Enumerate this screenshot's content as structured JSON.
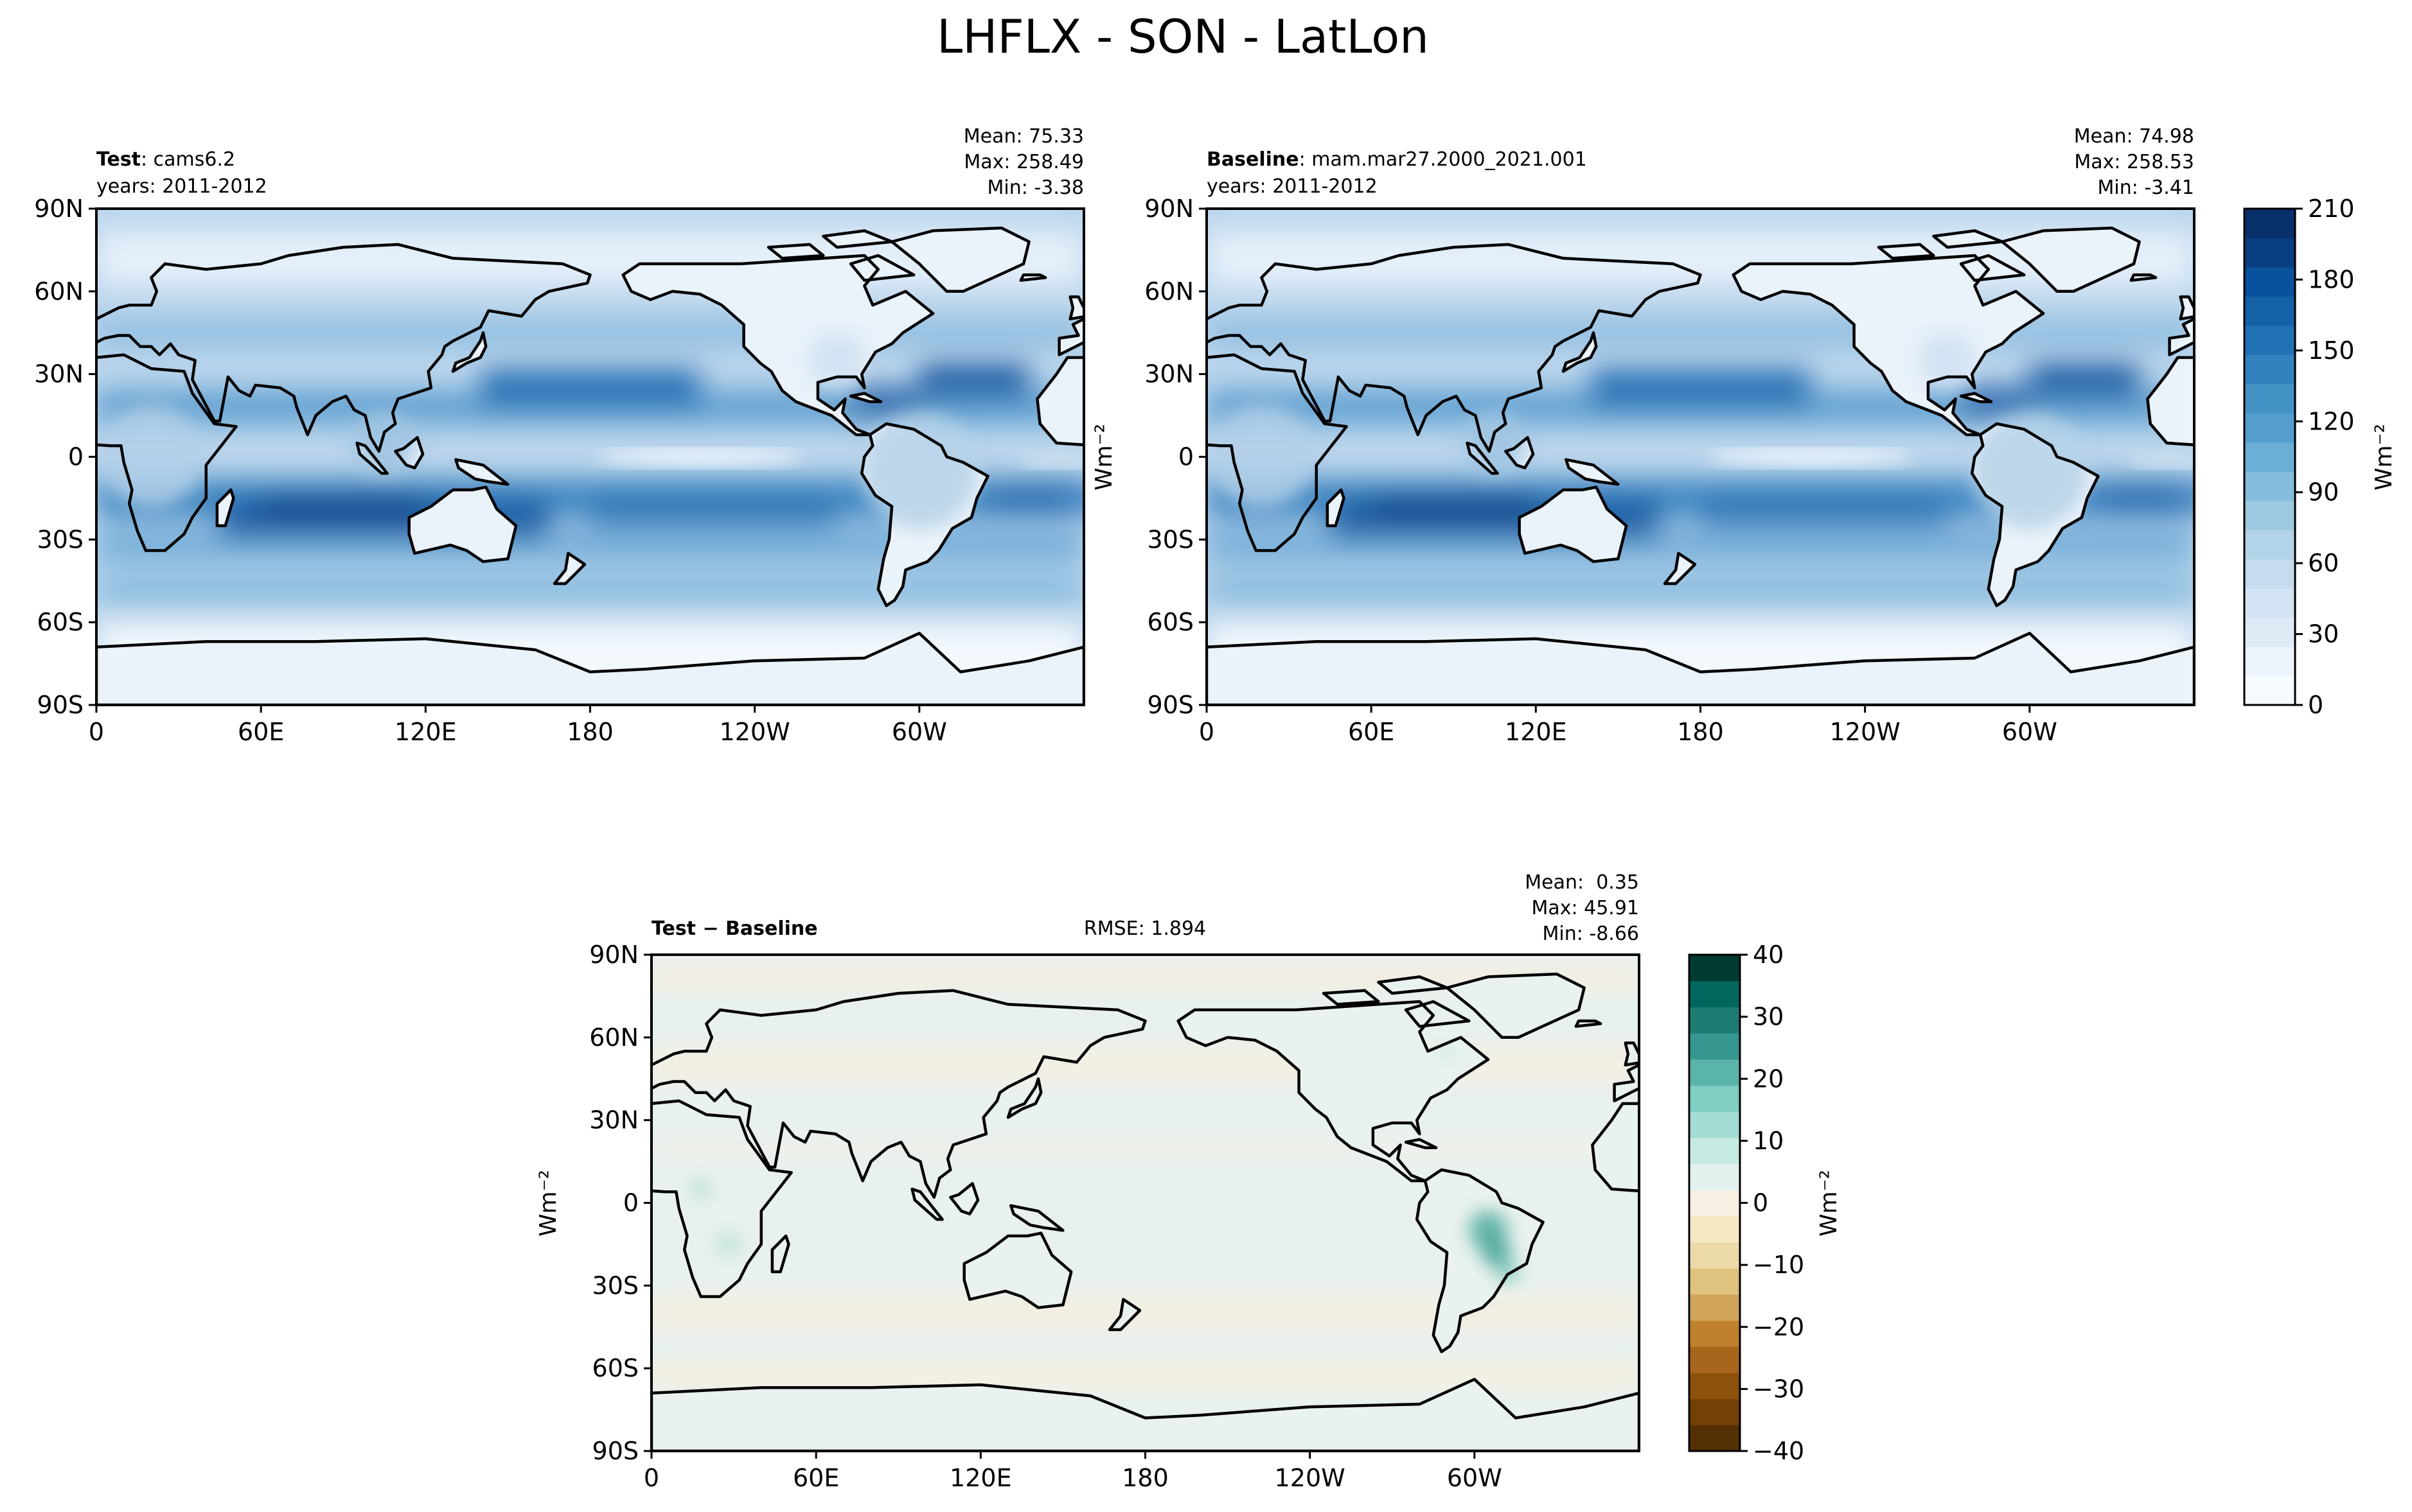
{
  "figure": {
    "title": "LHFLX - SON - LatLon"
  },
  "panels": {
    "test": {
      "title_bold": "Test",
      "title_rest": ": cams6.2",
      "years": "years: 2011-2012",
      "mean": "Mean: 75.33",
      "max": "Max: 258.49",
      "min": "Min: -3.38"
    },
    "baseline": {
      "title_bold": "Baseline",
      "title_rest": ": mam.mar27.2000_2021.001",
      "years": "years: 2011-2012",
      "mean": "Mean: 74.98",
      "max": "Max: 258.53",
      "min": "Min: -3.41"
    },
    "diff": {
      "title_bold": "Test − Baseline",
      "rmse": "RMSE: 1.894",
      "mean": "Mean:  0.35",
      "max": "Max: 45.91",
      "min": "Min: -8.66"
    }
  },
  "axes": {
    "lat_ticks": [
      "90N",
      "60N",
      "30N",
      "0",
      "30S",
      "60S",
      "90S"
    ],
    "lon_ticks": [
      "0",
      "60E",
      "120E",
      "180",
      "120W",
      "60W"
    ],
    "unit_label": "Wm⁻²"
  },
  "colorbars": {
    "top": {
      "ticks": [
        "210",
        "180",
        "150",
        "120",
        "90",
        "60",
        "30",
        "0"
      ],
      "label": "Wm⁻²",
      "range": [
        0,
        210
      ],
      "colors": [
        "#f7fbff",
        "#ebf3fb",
        "#deebf7",
        "#d2e3f3",
        "#c6dbef",
        "#b3d3e8",
        "#9ecae1",
        "#85bcdc",
        "#6baed6",
        "#549fcd",
        "#4292c6",
        "#3282be",
        "#2171b5",
        "#1461a8",
        "#08519c",
        "#083f80",
        "#08306b"
      ]
    },
    "diff": {
      "ticks": [
        "40",
        "30",
        "20",
        "10",
        "0",
        "−10",
        "−20",
        "−30",
        "−40"
      ],
      "label": "Wm⁻²",
      "range": [
        -40,
        40
      ],
      "colors": [
        "#543005",
        "#744006",
        "#8c510a",
        "#a8661c",
        "#bf812d",
        "#d0a45a",
        "#dfc27d",
        "#ecd9a8",
        "#f6e8c3",
        "#f5f0e1",
        "#e2f1ee",
        "#c7eae5",
        "#a4ddd3",
        "#80cdc1",
        "#5ab4a9",
        "#35978f",
        "#1d7d74",
        "#01665e",
        "#003c30"
      ]
    }
  },
  "chart_data": [
    {
      "type": "heatmap",
      "title": "Test: cams6.2",
      "subtitle": "years: 2011-2012",
      "variable": "LHFLX",
      "season": "SON",
      "stats": {
        "mean": 75.33,
        "max": 258.49,
        "min": -3.38
      },
      "xlabel": "",
      "ylabel": "",
      "colorbar_label": "Wm⁻²",
      "x_ticks": [
        "0",
        "60E",
        "120E",
        "180",
        "120W",
        "60W"
      ],
      "y_ticks": [
        "90N",
        "60N",
        "30N",
        "0",
        "30S",
        "60S",
        "90S"
      ],
      "value_range": [
        0,
        210
      ],
      "colorbar_ticks": [
        0,
        30,
        60,
        90,
        120,
        150,
        180,
        210
      ]
    },
    {
      "type": "heatmap",
      "title": "Baseline: mam.mar27.2000_2021.001",
      "subtitle": "years: 2011-2012",
      "variable": "LHFLX",
      "season": "SON",
      "stats": {
        "mean": 74.98,
        "max": 258.53,
        "min": -3.41
      },
      "xlabel": "",
      "ylabel": "Wm⁻²",
      "x_ticks": [
        "0",
        "60E",
        "120E",
        "180",
        "120W",
        "60W"
      ],
      "y_ticks": [
        "90N",
        "60N",
        "30N",
        "0",
        "30S",
        "60S",
        "90S"
      ],
      "value_range": [
        0,
        210
      ]
    },
    {
      "type": "heatmap",
      "title": "Test − Baseline",
      "variable": "LHFLX",
      "season": "SON",
      "stats": {
        "mean": 0.35,
        "max": 45.91,
        "min": -8.66,
        "rmse": 1.894
      },
      "xlabel": "",
      "ylabel": "Wm⁻²",
      "colorbar_label": "Wm⁻²",
      "x_ticks": [
        "0",
        "60E",
        "120E",
        "180",
        "120W",
        "60W"
      ],
      "y_ticks": [
        "90N",
        "60N",
        "30N",
        "0",
        "30S",
        "60S",
        "90S"
      ],
      "value_range": [
        -40,
        40
      ],
      "colorbar_ticks": [
        -40,
        -30,
        -20,
        -10,
        0,
        10,
        20,
        30,
        40
      ]
    }
  ]
}
